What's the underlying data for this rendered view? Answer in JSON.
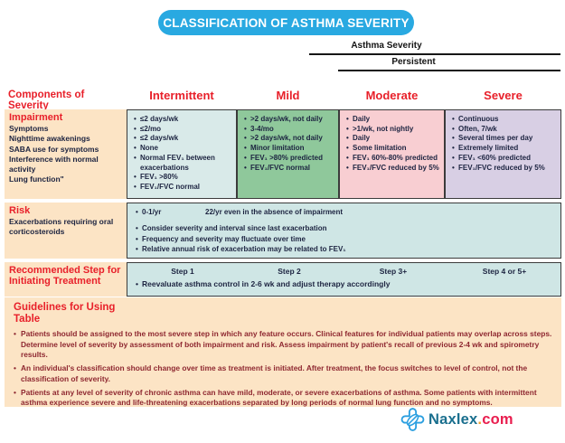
{
  "title": "CLASSIFICATION OF ASTHMA SEVERITY",
  "header": {
    "asthma_severity_label": "Asthma Severity",
    "persistent_label": "Persistent"
  },
  "table": {
    "components_header": "Components of Severity",
    "columns": [
      "Intermittent",
      "Mild",
      "Moderate",
      "Severe"
    ],
    "impairment": {
      "label": "Impairment",
      "sublabels": [
        "Symptoms",
        "Nighttime awakenings",
        "SABA use for symptoms",
        "Interference with normal activity",
        "Lung function\""
      ],
      "intermittent": [
        "≤2 days/wk",
        "≤2/mo",
        "≤2 days/wk",
        "None",
        "Normal FEV₁ between exacerbations",
        "FEV₁ >80%",
        "FEV₁/FVC normal"
      ],
      "mild": [
        ">2 days/wk, not daily",
        "3-4/mo",
        ">2 days/wk, not daily",
        "Minor limitation",
        "FEV₁ >80% predicted",
        "FEV₁/FVC normal"
      ],
      "moderate": [
        "Daily",
        ">1/wk, not nightly",
        "Daily",
        "Some limitation",
        "FEV₁ 60%-80% predicted",
        "FEV₁/FVC reduced by 5%"
      ],
      "severe": [
        "Continuous",
        "Often, 7/wk",
        "Several times per day",
        "Extremely limited",
        "FEV₁ <60% predicted",
        "FEV₁/FVC reduced by 5%"
      ]
    },
    "risk": {
      "label": "Risk",
      "sublabel": "Exacerbations requiring oral corticosteroids",
      "line1_left": "0-1/yr",
      "line1_right": "22/yr even in the absence of impairment",
      "bullets": [
        "Consider severity and interval since last exacerbation",
        "Frequency and severity may fluctuate over time",
        "Relative annual risk of exacerbation may be related to FEV₁"
      ]
    },
    "step": {
      "label": "Recommended Step for Initiating Treatment",
      "steps": [
        "Step 1",
        "Step 2",
        "Step 3+",
        "Step 4 or 5+"
      ],
      "note": "Reevaluate asthma control in 2-6 wk and adjust therapy accordingly"
    }
  },
  "guidelines": {
    "title": "Guidelines for Using Table",
    "bullets": [
      "Patients should be assigned to the most severe step in which any feature occurs. Clinical features for individual patients may overlap across steps. Determine level of severity by assessment of both impairment and risk. Assess impairment by patient's recall of previous 2-4 wk and spirometry results.",
      "An individual's classification should change over time as treatment is initiated. After treatment, the focus switches to level of control, not the classification of severity.",
      "Patients at any level of severity of chronic asthma can have mild, moderate, or severe exacerbations of asthma. Some patients with intermittent asthma experience severe and life-threatening exacerbations separated by long periods of normal lung function and no symptoms."
    ]
  },
  "footer": {
    "brand_name": "Naxlex",
    "brand_dot": ".",
    "brand_tld": "com"
  },
  "colors": {
    "pill-blue": "#29a9e1",
    "accent-red": "#e8202a",
    "peach": "#fce4c5",
    "cell-int": "#d9eae9",
    "cell-mild": "#8fc89b",
    "cell-mod": "#f8ced2",
    "cell-sev": "#d8cfe4",
    "cyan-row": "#cfe6e5",
    "navy": "#1c2340",
    "maroon": "#8e2730",
    "brand-teal": "#1a6f8e",
    "brand-orange": "#f0a02e",
    "brand-red": "#e91e4f"
  }
}
